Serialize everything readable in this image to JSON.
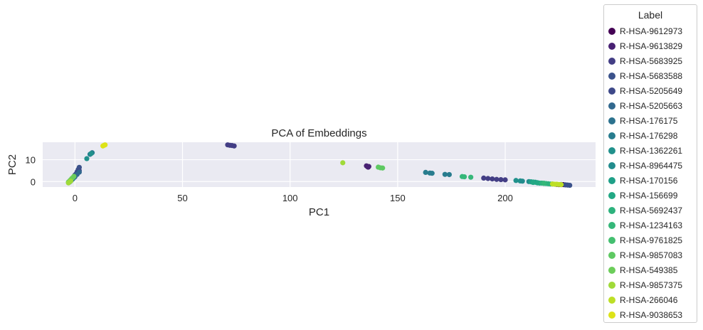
{
  "chart_data": {
    "type": "scatter",
    "title": "PCA of Embeddings",
    "xlabel": "PC1",
    "ylabel": "PC2",
    "xlim": [
      -15,
      242
    ],
    "ylim": [
      -2.5,
      18
    ],
    "xticks": [
      0,
      50,
      100,
      150,
      200
    ],
    "yticks": [
      0,
      10
    ],
    "grid": true,
    "legend": {
      "title": "Label",
      "placement": "outside-right"
    },
    "series": [
      {
        "name": "R-HSA-9612973",
        "color": "#440154",
        "points": [
          [
            224,
            -1.3
          ],
          [
            225,
            -1.4
          ],
          [
            226,
            -1.4
          ],
          [
            227,
            -1.4
          ],
          [
            228,
            -1.5
          ]
        ]
      },
      {
        "name": "R-HSA-9613829",
        "color": "#482173",
        "points": [
          [
            135.5,
            7.2
          ],
          [
            136,
            6.8
          ],
          [
            136.3,
            6.6
          ],
          [
            136.6,
            6.9
          ]
        ]
      },
      {
        "name": "R-HSA-5683925",
        "color": "#433e85",
        "points": [
          [
            71,
            16.8
          ],
          [
            72,
            16.6
          ],
          [
            73,
            16.5
          ],
          [
            74,
            16.3
          ],
          [
            190,
            1.6
          ],
          [
            192,
            1.4
          ],
          [
            194,
            1.2
          ],
          [
            196,
            1.0
          ],
          [
            198,
            0.9
          ],
          [
            200,
            0.8
          ]
        ]
      },
      {
        "name": "R-HSA-5683588",
        "color": "#3b528b",
        "points": [
          [
            -2,
            0.5
          ],
          [
            -1,
            1.5
          ],
          [
            0,
            2.5
          ],
          [
            0.5,
            3.5
          ],
          [
            1,
            4.5
          ],
          [
            1.5,
            5.5
          ],
          [
            2,
            6.5
          ],
          [
            226,
            -1.3
          ],
          [
            228,
            -1.5
          ],
          [
            229,
            -1.6
          ],
          [
            230,
            -1.7
          ]
        ]
      },
      {
        "name": "R-HSA-5205649",
        "color": "#3e4989",
        "points": [
          [
            -1.5,
            1.0
          ],
          [
            0,
            3.0
          ],
          [
            1,
            4.0
          ],
          [
            2,
            5.0
          ]
        ]
      },
      {
        "name": "R-HSA-5205663",
        "color": "#31688e",
        "points": [
          [
            -2,
            0.2
          ],
          [
            -1,
            1.2
          ],
          [
            0,
            2.2
          ],
          [
            1,
            3.3
          ],
          [
            2,
            4.3
          ]
        ]
      },
      {
        "name": "R-HSA-176175",
        "color": "#2c728e",
        "points": [
          [
            -2.5,
            -0.2
          ],
          [
            -1.5,
            0.8
          ],
          [
            -0.5,
            1.8
          ]
        ]
      },
      {
        "name": "R-HSA-176298",
        "color": "#287c8e",
        "points": [
          [
            163,
            4.2
          ],
          [
            165,
            3.9
          ],
          [
            166,
            3.8
          ],
          [
            172,
            3.3
          ],
          [
            174,
            3.2
          ],
          [
            7,
            12.5
          ],
          [
            8,
            13.2
          ]
        ]
      },
      {
        "name": "R-HSA-1362261",
        "color": "#21918c",
        "points": [
          [
            5.5,
            10.5
          ],
          [
            7.5,
            12.8
          ],
          [
            205,
            0.5
          ],
          [
            207,
            0.3
          ]
        ]
      },
      {
        "name": "R-HSA-8964475",
        "color": "#228c8d",
        "points": [
          [
            -3,
            -0.3
          ],
          [
            -2,
            0.6
          ],
          [
            208,
            0.2
          ],
          [
            211,
            0.0
          ]
        ]
      },
      {
        "name": "R-HSA-170156",
        "color": "#1fa088",
        "points": [
          [
            212,
            -0.1
          ],
          [
            213,
            -0.2
          ],
          [
            214,
            -0.3
          ],
          [
            215,
            -0.5
          ]
        ]
      },
      {
        "name": "R-HSA-156699",
        "color": "#22a884",
        "points": [
          [
            213,
            -0.4
          ],
          [
            215,
            -0.6
          ],
          [
            216,
            -0.7
          ],
          [
            218,
            -0.8
          ]
        ]
      },
      {
        "name": "R-HSA-5692437",
        "color": "#2db27d",
        "points": [
          [
            217,
            -0.7
          ],
          [
            219,
            -0.9
          ],
          [
            220,
            -1.0
          ],
          [
            221,
            -1.1
          ]
        ]
      },
      {
        "name": "R-HSA-1234163",
        "color": "#35b779",
        "points": [
          [
            180,
            2.3
          ],
          [
            181,
            2.2
          ],
          [
            184,
            2.0
          ],
          [
            218,
            -0.8
          ],
          [
            222,
            -1.1
          ]
        ]
      },
      {
        "name": "R-HSA-9761825",
        "color": "#44bf70",
        "points": [
          [
            -3,
            -0.5
          ],
          [
            -2.5,
            0.0
          ],
          [
            -2,
            0.5
          ]
        ]
      },
      {
        "name": "R-HSA-9857083",
        "color": "#5ec962",
        "points": [
          [
            141,
            6.6
          ],
          [
            142,
            6.3
          ],
          [
            143,
            6.2
          ],
          [
            -3,
            -0.2
          ],
          [
            -2,
            0.8
          ],
          [
            -1,
            1.8
          ]
        ]
      },
      {
        "name": "R-HSA-549385",
        "color": "#6ccd5a",
        "points": [
          [
            -2.5,
            0.3
          ],
          [
            -1.5,
            1.4
          ],
          [
            -0.5,
            2.4
          ]
        ]
      },
      {
        "name": "R-HSA-9857375",
        "color": "#a0da39",
        "points": [
          [
            124.5,
            8.6
          ],
          [
            -3,
            -0.6
          ],
          [
            -2,
            0.2
          ]
        ]
      },
      {
        "name": "R-HSA-266046",
        "color": "#bddf26",
        "points": [
          [
            222,
            -1.1
          ],
          [
            223,
            -1.2
          ],
          [
            224,
            -1.2
          ],
          [
            225,
            -1.3
          ],
          [
            226,
            -1.4
          ]
        ]
      },
      {
        "name": "R-HSA-9038653",
        "color": "#dde318",
        "points": [
          [
            13,
            16.3
          ],
          [
            13.5,
            16.6
          ],
          [
            14,
            16.8
          ]
        ]
      }
    ]
  }
}
